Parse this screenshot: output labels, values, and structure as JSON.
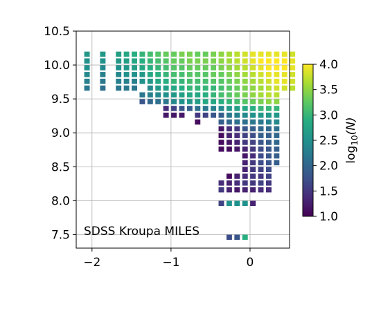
{
  "chart_data": {
    "type": "heatmap",
    "title": "",
    "xlabel": "",
    "ylabel": "",
    "annotation": "SDSS Kroupa MILES",
    "xlim": [
      -2.2,
      0.5
    ],
    "ylim": [
      7.3,
      10.5
    ],
    "x_ticks": [
      -2,
      -1,
      0
    ],
    "x_tick_labels": [
      "−2",
      "−1",
      "0"
    ],
    "y_ticks": [
      7.5,
      8.0,
      8.5,
      9.0,
      9.5,
      10.0,
      10.5
    ],
    "y_tick_labels": [
      "7.5",
      "8.0",
      "8.5",
      "9.0",
      "9.5",
      "10.0",
      "10.5"
    ],
    "grid": true,
    "colormap": "viridis",
    "colorbar": {
      "label": "log10(N)",
      "label_base": "log",
      "label_sub": "10",
      "label_rest": "(N)",
      "range": [
        1.0,
        4.0
      ],
      "ticks": [
        1.0,
        1.5,
        2.0,
        2.5,
        3.0,
        3.5,
        4.0
      ],
      "tick_labels": [
        "1.0",
        "1.5",
        "2.0",
        "2.5",
        "3.0",
        "3.5",
        "4.0"
      ]
    },
    "cell_width": 0.1,
    "cell_height": 0.1,
    "rows": [
      {
        "y": 10.15,
        "x_start": -2.05,
        "values": [
          2.6,
          null,
          2.6,
          null,
          2.7,
          2.8,
          2.9,
          3.0,
          3.1,
          3.2,
          3.3,
          3.3,
          3.4,
          3.4,
          3.3,
          3.3,
          3.4,
          3.5,
          3.6,
          3.7,
          3.8,
          3.9,
          3.9,
          3.9,
          3.9,
          3.9,
          3.8
        ]
      },
      {
        "y": 10.05,
        "x_start": -2.05,
        "values": [
          2.5,
          null,
          2.5,
          null,
          2.6,
          2.7,
          2.8,
          2.9,
          3.0,
          3.1,
          3.2,
          3.3,
          3.3,
          3.4,
          3.4,
          3.4,
          3.4,
          3.5,
          3.6,
          3.7,
          3.8,
          3.9,
          4.0,
          4.0,
          4.0,
          4.0,
          3.9
        ]
      },
      {
        "y": 9.95,
        "x_start": -2.05,
        "values": [
          2.5,
          null,
          2.4,
          null,
          2.5,
          2.6,
          2.7,
          2.8,
          2.9,
          3.0,
          3.1,
          3.2,
          3.2,
          3.3,
          3.3,
          3.3,
          3.3,
          3.4,
          3.5,
          3.6,
          3.7,
          3.8,
          3.9,
          4.0,
          4.0,
          4.0,
          3.9
        ]
      },
      {
        "y": 9.85,
        "x_start": -2.05,
        "values": [
          2.4,
          null,
          2.3,
          null,
          2.4,
          2.5,
          2.5,
          2.6,
          2.8,
          2.9,
          3.0,
          3.1,
          3.1,
          3.2,
          3.2,
          3.2,
          3.3,
          3.3,
          3.4,
          3.5,
          3.6,
          3.7,
          3.8,
          3.9,
          3.9,
          3.9,
          3.8
        ]
      },
      {
        "y": 9.75,
        "x_start": -2.05,
        "values": [
          2.3,
          null,
          2.2,
          null,
          2.3,
          2.3,
          2.3,
          2.5,
          2.6,
          2.8,
          2.9,
          3.0,
          3.0,
          3.1,
          3.1,
          3.1,
          3.2,
          3.2,
          3.3,
          3.4,
          3.5,
          3.6,
          3.7,
          3.8,
          3.9,
          3.9,
          3.8
        ]
      },
      {
        "y": 9.65,
        "x_start": -2.05,
        "values": [
          2.2,
          null,
          2.1,
          null,
          2.2,
          2.2,
          2.2,
          null,
          2.4,
          2.6,
          2.7,
          2.8,
          2.9,
          3.0,
          3.0,
          3.0,
          3.0,
          3.1,
          3.2,
          3.3,
          3.4,
          3.5,
          3.6,
          3.7,
          3.8,
          3.8,
          3.7
        ]
      },
      {
        "y": 9.55,
        "x_start": -1.35,
        "values": [
          2.2,
          2.3,
          2.4,
          2.5,
          2.6,
          2.7,
          2.8,
          2.8,
          2.9,
          3.0,
          3.1,
          3.2,
          3.3,
          3.4,
          3.5,
          3.6,
          3.7,
          3.7
        ]
      },
      {
        "y": 9.45,
        "x_start": -1.35,
        "values": [
          1.8,
          2.0,
          2.1,
          2.2,
          2.4,
          2.5,
          2.6,
          2.7,
          2.8,
          2.8,
          2.9,
          3.0,
          3.1,
          3.2,
          3.3,
          3.4,
          3.5,
          3.5
        ]
      },
      {
        "y": 9.35,
        "x_start": -1.05,
        "values": [
          1.4,
          1.6,
          1.8,
          1.9,
          2.1,
          2.2,
          2.3,
          2.4,
          2.6,
          2.7,
          2.8,
          2.9,
          3.0,
          3.0,
          3.0
        ]
      },
      {
        "y": 9.25,
        "x_start": -1.05,
        "values": [
          1.2,
          1.2,
          1.2,
          null,
          1.5,
          1.6,
          1.8,
          1.9,
          2.2,
          2.3,
          2.4,
          2.5,
          2.6,
          2.6,
          2.6
        ]
      },
      {
        "y": 9.15,
        "x_start": -0.65,
        "values": [
          1.1,
          null,
          null,
          1.9,
          2.0,
          2.1,
          2.1,
          2.2,
          2.2,
          2.3,
          2.4
        ]
      },
      {
        "y": 9.05,
        "x_start": -0.35,
        "values": [
          1.2,
          1.4,
          1.5,
          1.8,
          1.9,
          2.0,
          2.0,
          2.1
        ]
      },
      {
        "y": 8.95,
        "x_start": -0.35,
        "values": [
          1.1,
          1.3,
          1.4,
          1.6,
          1.7,
          1.9,
          1.9,
          2.0
        ]
      },
      {
        "y": 8.85,
        "x_start": -0.35,
        "values": [
          1.1,
          1.2,
          1.3,
          1.5,
          1.6,
          1.8,
          1.9,
          2.0
        ]
      },
      {
        "y": 8.75,
        "x_start": -0.35,
        "values": [
          1.1,
          1.1,
          1.2,
          1.3,
          1.5,
          1.7,
          1.8,
          1.9
        ]
      },
      {
        "y": 8.65,
        "x_start": -0.05,
        "values": [
          1.2,
          1.4,
          1.7,
          1.8,
          1.9
        ]
      },
      {
        "y": 8.55,
        "x_start": -0.05,
        "values": [
          1.3,
          1.5,
          1.7,
          1.8,
          1.9
        ]
      },
      {
        "y": 8.45,
        "x_start": -0.05,
        "values": [
          1.3,
          1.5,
          1.6,
          1.7
        ]
      },
      {
        "y": 8.35,
        "x_start": -0.25,
        "values": [
          1.1,
          1.3,
          1.4,
          1.5,
          1.5,
          1.6
        ]
      },
      {
        "y": 8.25,
        "x_start": -0.35,
        "values": [
          1.4,
          1.3,
          1.4,
          1.5,
          1.5,
          1.6,
          1.5
        ]
      },
      {
        "y": 8.15,
        "x_start": -0.35,
        "values": [
          1.5,
          1.3,
          1.2,
          1.3,
          1.3,
          1.4,
          1.4
        ]
      },
      {
        "y": 7.95,
        "x_start": -0.35,
        "values": [
          1.6,
          2.5,
          2.5,
          2.5,
          1.3
        ]
      },
      {
        "y": 7.45,
        "x_start": -0.25,
        "values": [
          1.7,
          1.8,
          2.9
        ]
      }
    ]
  }
}
